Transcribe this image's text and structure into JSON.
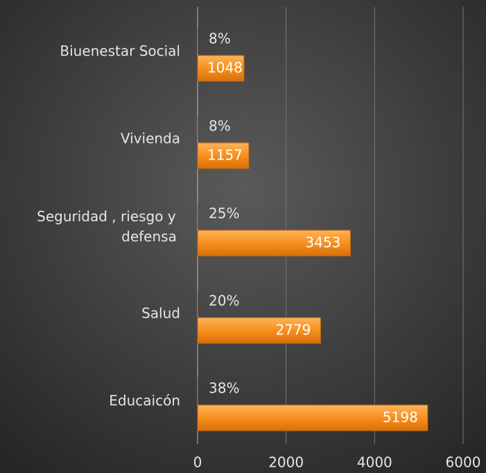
{
  "chart_data": {
    "type": "bar",
    "orientation": "horizontal",
    "categories": [
      "Biuenestar Social",
      "Vivienda",
      "Seguridad , riesgo y defensa",
      "Salud",
      "Educaicón"
    ],
    "series": [
      {
        "color": "#c0504d",
        "values": [
          0.08,
          0.08,
          0.25,
          0.2,
          0.38
        ],
        "value_labels": [
          "8%",
          "8%",
          "25%",
          "20%",
          "38%"
        ]
      },
      {
        "color": "#f7901e",
        "values": [
          1048,
          1157,
          3453,
          2779,
          5198
        ]
      }
    ],
    "xlim": [
      0,
      6000
    ],
    "xticks": [
      0,
      2000,
      4000,
      6000
    ],
    "grid": true
  }
}
